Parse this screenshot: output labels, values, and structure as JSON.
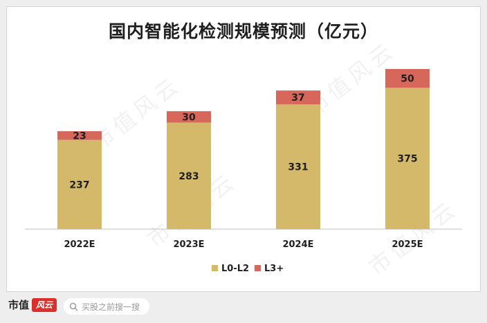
{
  "footer": {
    "brand_text": "市值",
    "brand_logo_text": "风云",
    "search_placeholder": "买股之前搜一搜"
  },
  "watermark_text": "市值风云",
  "colors": {
    "l0_l2": "#d4b96a",
    "l3_plus": "#d6675a",
    "axis": "#bfbfbf",
    "text": "#1f1f1f"
  },
  "chart_data": {
    "type": "bar",
    "stacked": true,
    "title": "国内智能化检测规模预测（亿元）",
    "categories": [
      "2022E",
      "2023E",
      "2024E",
      "2025E"
    ],
    "series": [
      {
        "name": "L0-L2",
        "values": [
          237,
          283,
          331,
          375
        ]
      },
      {
        "name": "L3+",
        "values": [
          23,
          30,
          37,
          50
        ]
      }
    ],
    "xlabel": "",
    "ylabel": "",
    "ylim": [
      0,
      425
    ],
    "legend_position": "bottom",
    "grid": false
  }
}
